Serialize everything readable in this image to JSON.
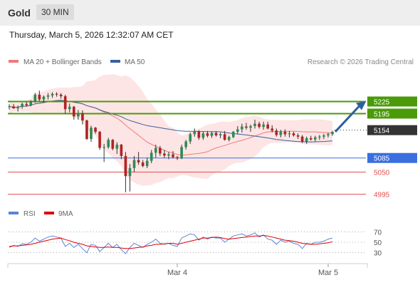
{
  "header": {
    "asset": "Gold",
    "timeframe": "30 MIN",
    "timestamp": "Thursday, March 5, 2026 12:32:07 AM CET"
  },
  "legend": {
    "ma20_label": "MA 20 + Bollinger Bands",
    "ma50_label": "MA 50",
    "ma20_color": "#f07a7a",
    "ma50_color": "#3a5fa0",
    "credit": "Research © 2026 Trading Central"
  },
  "rsi_legend": {
    "rsi_label": "RSI",
    "ma9_label": "9MA",
    "rsi_color": "#5b84d6",
    "ma9_color": "#e00000"
  },
  "colors": {
    "up": "#2e8b57",
    "down": "#b22222",
    "resistance": "#4a9a0a",
    "support": "#3a6fe0",
    "level_red": "#e05050",
    "band_fill": "#fde5e5",
    "current": "#333333",
    "arrow": "#2d5fa0"
  },
  "chart_data": [
    {
      "type": "candlestick",
      "x_labels": [
        "Mar 4",
        "Mar 5"
      ],
      "ylim": [
        4975,
        5300
      ],
      "price_levels": [
        {
          "name": "resistance-2",
          "value": 5225,
          "label": "5225",
          "style": "resistance"
        },
        {
          "name": "resistance-1",
          "value": 5195,
          "label": "5195",
          "style": "resistance"
        },
        {
          "name": "current-price",
          "value": 5154,
          "label": "5154",
          "style": "current"
        },
        {
          "name": "pivot",
          "value": 5085,
          "label": "5085",
          "style": "support"
        },
        {
          "name": "support-1",
          "value": 5050,
          "label": "5050",
          "style": "red"
        },
        {
          "name": "support-2",
          "value": 4995,
          "label": "4995",
          "style": "red"
        }
      ],
      "candles": [
        [
          5212,
          5218,
          5205,
          5213
        ],
        [
          5213,
          5219,
          5207,
          5208
        ],
        [
          5208,
          5215,
          5200,
          5212
        ],
        [
          5212,
          5222,
          5207,
          5219
        ],
        [
          5219,
          5224,
          5212,
          5216
        ],
        [
          5216,
          5228,
          5213,
          5225
        ],
        [
          5225,
          5246,
          5222,
          5242
        ],
        [
          5242,
          5252,
          5226,
          5230
        ],
        [
          5230,
          5240,
          5222,
          5237
        ],
        [
          5237,
          5246,
          5230,
          5240
        ],
        [
          5240,
          5248,
          5234,
          5244
        ],
        [
          5244,
          5248,
          5237,
          5242
        ],
        [
          5242,
          5246,
          5232,
          5238
        ],
        [
          5238,
          5242,
          5195,
          5206
        ],
        [
          5206,
          5220,
          5198,
          5212
        ],
        [
          5212,
          5214,
          5180,
          5188
        ],
        [
          5188,
          5204,
          5180,
          5196
        ],
        [
          5196,
          5203,
          5168,
          5178
        ],
        [
          5178,
          5180,
          5130,
          5132
        ],
        [
          5132,
          5165,
          5125,
          5160
        ],
        [
          5160,
          5162,
          5145,
          5150
        ],
        [
          5150,
          5152,
          5105,
          5110
        ],
        [
          5110,
          5120,
          5075,
          5112
        ],
        [
          5112,
          5135,
          5108,
          5130
        ],
        [
          5130,
          5132,
          5104,
          5108
        ],
        [
          5108,
          5124,
          5095,
          5118
        ],
        [
          5118,
          5120,
          5082,
          5090
        ],
        [
          5090,
          5100,
          5000,
          5040
        ],
        [
          5040,
          5070,
          5002,
          5060
        ],
        [
          5060,
          5090,
          5050,
          5080
        ],
        [
          5080,
          5100,
          5068,
          5074
        ],
        [
          5074,
          5080,
          5062,
          5065
        ],
        [
          5065,
          5086,
          5060,
          5078
        ],
        [
          5078,
          5105,
          5072,
          5098
        ],
        [
          5098,
          5118,
          5086,
          5110
        ],
        [
          5110,
          5115,
          5090,
          5096
        ],
        [
          5096,
          5105,
          5085,
          5091
        ],
        [
          5091,
          5100,
          5082,
          5094
        ],
        [
          5094,
          5102,
          5084,
          5087
        ],
        [
          5087,
          5090,
          5080,
          5084
        ],
        [
          5084,
          5118,
          5082,
          5112
        ],
        [
          5112,
          5130,
          5106,
          5126
        ],
        [
          5126,
          5148,
          5120,
          5144
        ],
        [
          5144,
          5158,
          5138,
          5150
        ],
        [
          5150,
          5154,
          5130,
          5135
        ],
        [
          5135,
          5150,
          5130,
          5146
        ],
        [
          5146,
          5152,
          5136,
          5140
        ],
        [
          5140,
          5150,
          5135,
          5147
        ],
        [
          5147,
          5152,
          5138,
          5141
        ],
        [
          5141,
          5148,
          5134,
          5144
        ],
        [
          5144,
          5152,
          5128,
          5130
        ],
        [
          5130,
          5140,
          5126,
          5137
        ],
        [
          5137,
          5152,
          5134,
          5150
        ],
        [
          5150,
          5164,
          5144,
          5156
        ],
        [
          5156,
          5170,
          5148,
          5163
        ],
        [
          5163,
          5172,
          5155,
          5160
        ],
        [
          5160,
          5168,
          5150,
          5164
        ],
        [
          5164,
          5180,
          5158,
          5170
        ],
        [
          5170,
          5175,
          5158,
          5162
        ],
        [
          5162,
          5175,
          5155,
          5168
        ],
        [
          5168,
          5175,
          5156,
          5158
        ],
        [
          5158,
          5166,
          5148,
          5153
        ],
        [
          5153,
          5158,
          5138,
          5142
        ],
        [
          5142,
          5155,
          5136,
          5150
        ],
        [
          5150,
          5156,
          5138,
          5144
        ],
        [
          5144,
          5152,
          5136,
          5146
        ],
        [
          5146,
          5150,
          5138,
          5141
        ],
        [
          5141,
          5146,
          5132,
          5138
        ],
        [
          5138,
          5142,
          5122,
          5126
        ],
        [
          5126,
          5138,
          5120,
          5134
        ],
        [
          5134,
          5140,
          5128,
          5131
        ],
        [
          5131,
          5140,
          5126,
          5136
        ],
        [
          5136,
          5142,
          5130,
          5138
        ],
        [
          5138,
          5145,
          5132,
          5141
        ],
        [
          5141,
          5148,
          5136,
          5144
        ],
        [
          5144,
          5152,
          5140,
          5150
        ]
      ]
    },
    {
      "type": "line",
      "name": "RSI",
      "y_ticks": [
        70,
        50,
        30
      ],
      "ylim": [
        20,
        80
      ],
      "series": [
        {
          "name": "RSI",
          "values": [
            40,
            44,
            42,
            47,
            46,
            50,
            58,
            52,
            56,
            60,
            62,
            60,
            58,
            42,
            48,
            40,
            46,
            38,
            30,
            46,
            44,
            32,
            40,
            48,
            40,
            46,
            36,
            28,
            40,
            48,
            44,
            40,
            46,
            50,
            56,
            48,
            46,
            48,
            44,
            42,
            58,
            62,
            66,
            64,
            54,
            60,
            56,
            60,
            58,
            58,
            50,
            56,
            62,
            64,
            66,
            62,
            64,
            68,
            60,
            64,
            56,
            54,
            46,
            54,
            50,
            52,
            48,
            46,
            38,
            48,
            46,
            50,
            50,
            52,
            56,
            58
          ]
        },
        {
          "name": "9MA",
          "values": [
            42,
            43,
            43,
            44,
            45,
            46,
            48,
            50,
            52,
            54,
            56,
            57,
            58,
            55,
            53,
            50,
            48,
            46,
            43,
            42,
            41,
            40,
            40,
            41,
            40,
            40,
            39,
            38,
            38,
            39,
            40,
            41,
            43,
            44,
            46,
            46,
            47,
            48,
            48,
            46,
            48,
            50,
            52,
            54,
            56,
            58,
            58,
            59,
            60,
            59,
            57,
            56,
            57,
            58,
            59,
            60,
            61,
            62,
            62,
            63,
            62,
            60,
            58,
            56,
            54,
            53,
            52,
            50,
            48,
            47,
            46,
            46,
            47,
            48,
            49,
            51
          ]
        }
      ]
    }
  ]
}
